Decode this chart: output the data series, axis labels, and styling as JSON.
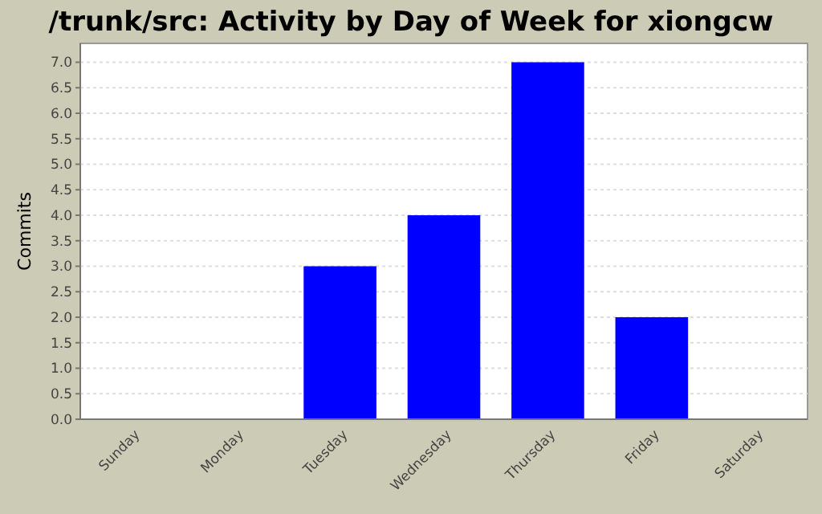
{
  "chart_data": {
    "type": "bar",
    "title": "/trunk/src: Activity by Day of Week for xiongcw",
    "ylabel": "Commits",
    "categories": [
      "Sunday",
      "Monday",
      "Tuesday",
      "Wednesday",
      "Thursday",
      "Friday",
      "Saturday"
    ],
    "values": [
      0,
      0,
      3,
      4,
      7,
      2,
      0
    ],
    "color": "#0000ff",
    "ylim": [
      0,
      7.37
    ],
    "yticks": [
      {
        "value": 0,
        "label": "0.0"
      },
      {
        "value": 0.5,
        "label": "0.5"
      },
      {
        "value": 1,
        "label": "1.0"
      },
      {
        "value": 1.5,
        "label": "1.5"
      },
      {
        "value": 2,
        "label": "2.0"
      },
      {
        "value": 2.5,
        "label": "2.5"
      },
      {
        "value": 3,
        "label": "3.0"
      },
      {
        "value": 3.5,
        "label": "3.5"
      },
      {
        "value": 4,
        "label": "4.0"
      },
      {
        "value": 4.5,
        "label": "4.5"
      },
      {
        "value": 5,
        "label": "5.0"
      },
      {
        "value": 5.5,
        "label": "5.5"
      },
      {
        "value": 6,
        "label": "6.0"
      },
      {
        "value": 6.5,
        "label": "6.5"
      },
      {
        "value": 7,
        "label": "7.0"
      }
    ],
    "grid": "y"
  }
}
